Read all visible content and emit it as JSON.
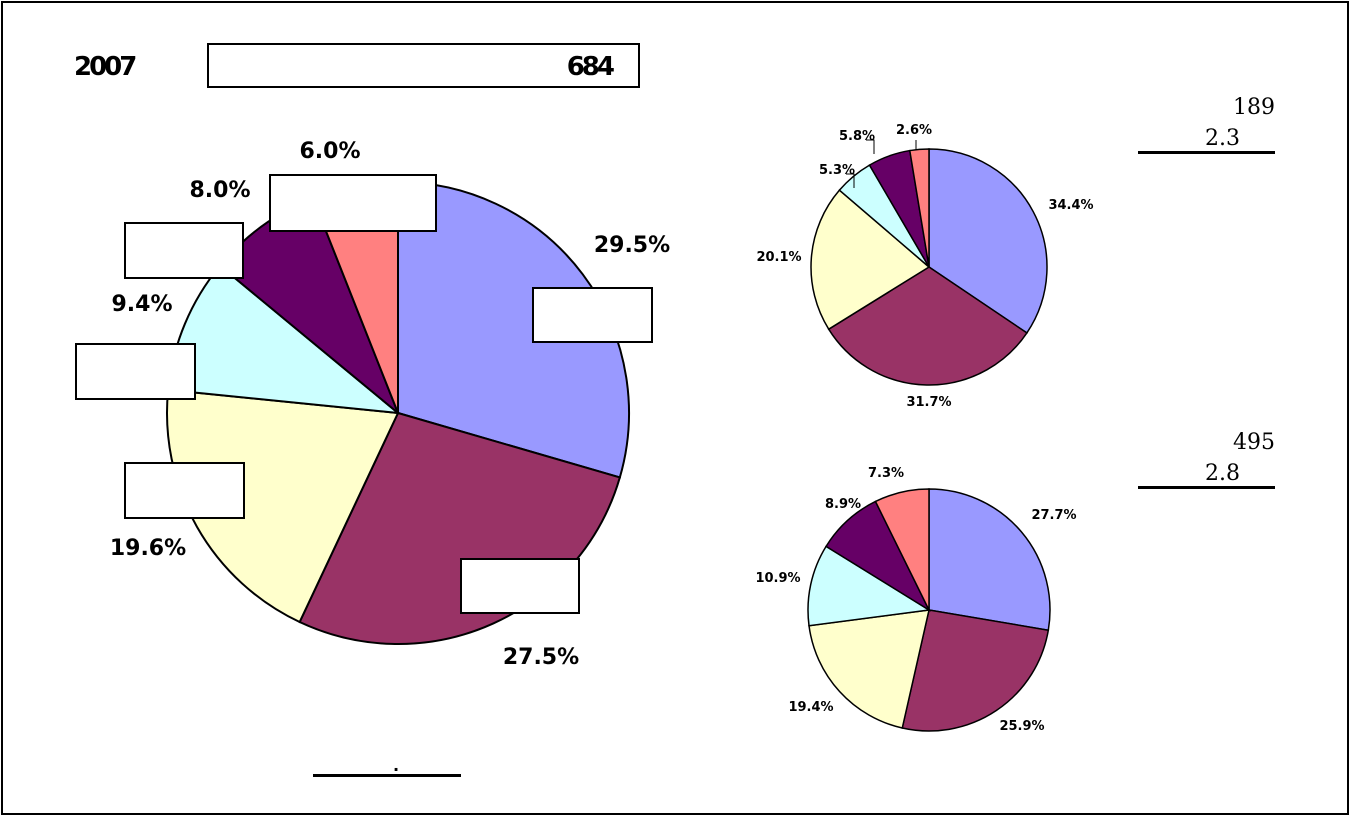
{
  "header": {
    "year": "2007",
    "total": "684"
  },
  "bottom_note": ".",
  "side_notes": [
    {
      "count": "189",
      "ratio": "2.3"
    },
    {
      "count": "495",
      "ratio": "2.8"
    }
  ],
  "colors": {
    "slices": [
      "#9999FF",
      "#993366",
      "#FFFFCC",
      "#CCFFFF",
      "#660066",
      "#FF8080"
    ],
    "stroke": "#000000"
  },
  "chart_data": [
    {
      "type": "pie",
      "values": [
        29.5,
        27.5,
        19.6,
        9.4,
        8.0,
        6.0
      ],
      "labels": [
        "29.5%",
        "27.5%",
        "19.6%",
        "9.4%",
        "8.0%",
        "6.0%"
      ]
    },
    {
      "type": "pie",
      "values": [
        34.4,
        31.7,
        20.1,
        5.3,
        5.8,
        2.6
      ],
      "labels": [
        "34.4%",
        "31.7%",
        "20.1%",
        "5.3%",
        "5.8%",
        "2.6%"
      ]
    },
    {
      "type": "pie",
      "values": [
        27.7,
        25.9,
        19.4,
        10.9,
        8.9,
        7.3
      ],
      "labels": [
        "27.7%",
        "25.9%",
        "19.4%",
        "10.9%",
        "8.9%",
        "7.3%"
      ]
    }
  ]
}
